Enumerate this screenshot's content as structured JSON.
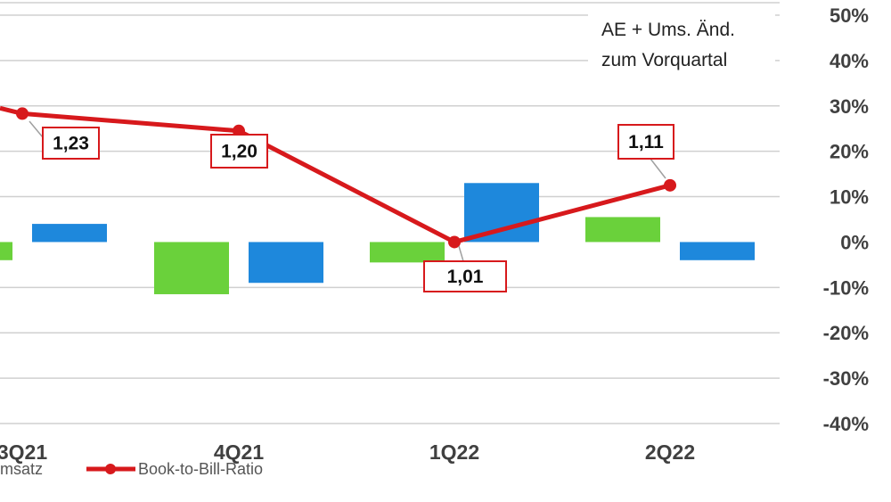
{
  "chart_data": {
    "type": "bar",
    "categories": [
      "3Q21",
      "4Q21",
      "1Q22",
      "2Q22"
    ],
    "series": [
      {
        "kind": "bar",
        "values": [
          -4,
          -11.5,
          -4.5,
          5.5
        ],
        "color": "#6ad13b"
      },
      {
        "kind": "bar",
        "name": "Umsatz",
        "values": [
          4,
          -9,
          13,
          -4
        ],
        "color": "#1e88dc"
      },
      {
        "kind": "line",
        "name": "Book-to-Bill-Ratio",
        "values": [
          28.3,
          24.5,
          0,
          12.5
        ],
        "labels": [
          "1,23",
          "1,20",
          "1,01",
          "1,11"
        ],
        "color": "#d7191c"
      }
    ],
    "ylim": [
      -40,
      50
    ],
    "yticks": [
      50,
      40,
      30,
      20,
      10,
      0,
      -10,
      -20,
      -30,
      -40
    ],
    "ytick_labels": [
      "50%",
      "40%",
      "30%",
      "20%",
      "10%",
      "0%",
      "-10%",
      "-20%",
      "-30%",
      "-40%"
    ],
    "axis_side": "right",
    "grid": true,
    "annotation": [
      "AE + Ums. Änd.",
      "zum Vorquartal"
    ],
    "legend": {
      "position": "bottom-left",
      "items": [
        "msatz",
        "Book-to-Bill-Ratio"
      ]
    }
  }
}
